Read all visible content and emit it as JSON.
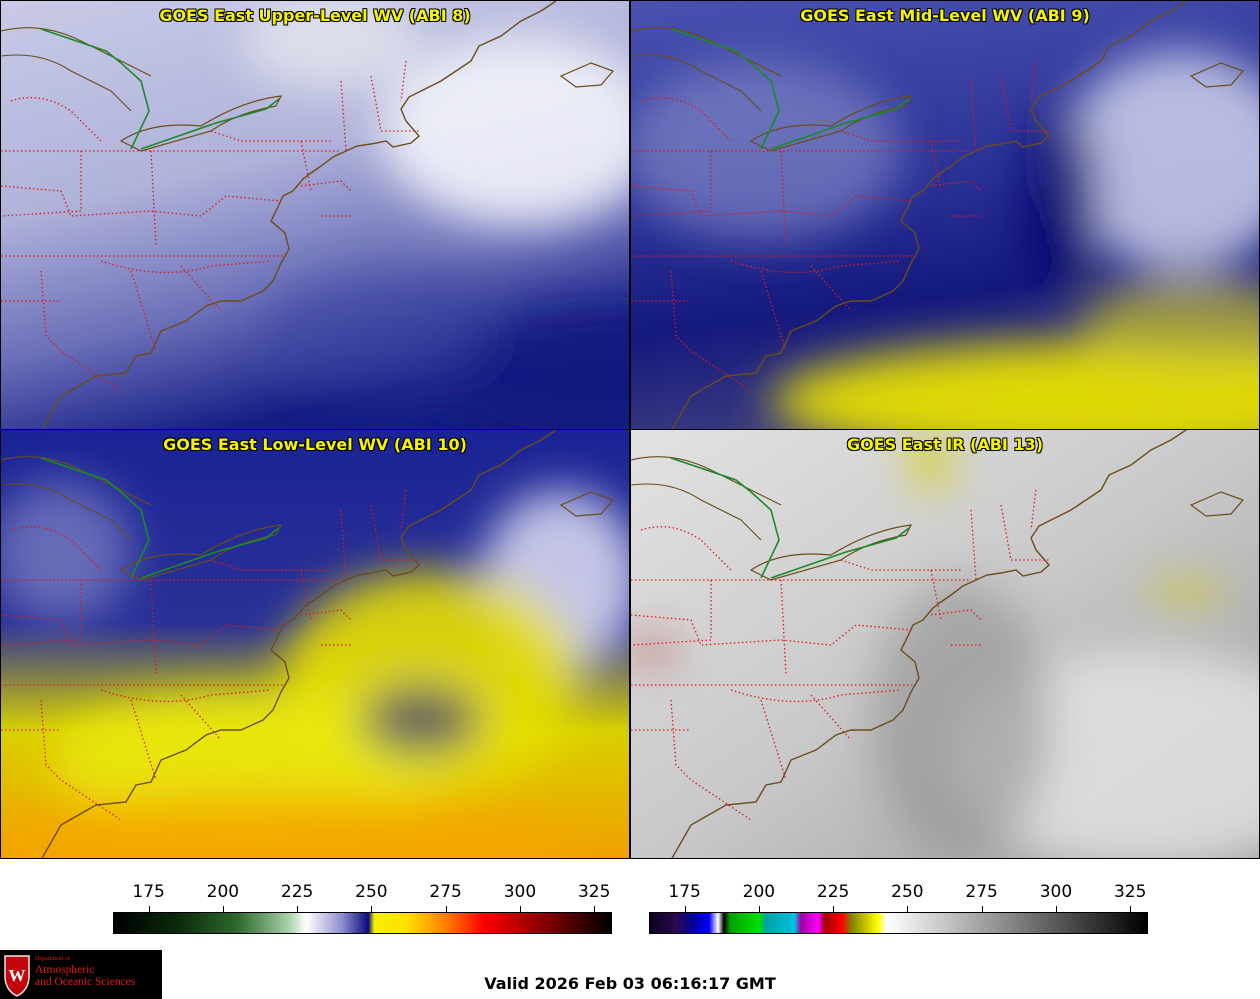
{
  "panels": [
    {
      "title": "GOES East Upper-Level WV (ABI 8)",
      "scheme": "upper"
    },
    {
      "title": "GOES East Mid-Level WV (ABI 9)",
      "scheme": "mid"
    },
    {
      "title": "GOES East Low-Level WV (ABI 10)",
      "scheme": "low"
    },
    {
      "title": "GOES East IR (ABI 13)",
      "scheme": "ir"
    }
  ],
  "colorbars": {
    "wv": {
      "ticks": [
        "175",
        "200",
        "225",
        "250",
        "275",
        "300",
        "325"
      ],
      "min": 163,
      "max": 331,
      "stops": [
        [
          163,
          "#000000"
        ],
        [
          185,
          "#0c2b0c"
        ],
        [
          205,
          "#2e6b2e"
        ],
        [
          222,
          "#a8cfa8"
        ],
        [
          228,
          "#ffffff"
        ],
        [
          240,
          "#8f8fd0"
        ],
        [
          249,
          "#0a0a7e"
        ],
        [
          251,
          "#f5f000"
        ],
        [
          262,
          "#ffe000"
        ],
        [
          275,
          "#ff8000"
        ],
        [
          288,
          "#ff0000"
        ],
        [
          305,
          "#990000"
        ],
        [
          331,
          "#000000"
        ]
      ]
    },
    "ir": {
      "ticks": [
        "175",
        "200",
        "225",
        "250",
        "275",
        "300",
        "325"
      ],
      "min": 163,
      "max": 331,
      "stops": [
        [
          163,
          "#0a0020"
        ],
        [
          172,
          "#2a0a50"
        ],
        [
          178,
          "#0000a0"
        ],
        [
          183,
          "#0000ff"
        ],
        [
          186,
          "#ffffff"
        ],
        [
          188,
          "#000000"
        ],
        [
          190,
          "#00a000"
        ],
        [
          200,
          "#00e000"
        ],
        [
          202,
          "#00a0a0"
        ],
        [
          212,
          "#00c0e0"
        ],
        [
          214,
          "#a000a0"
        ],
        [
          220,
          "#ff00ff"
        ],
        [
          222,
          "#a00000"
        ],
        [
          228,
          "#ff0000"
        ],
        [
          231,
          "#808000"
        ],
        [
          240,
          "#ffff00"
        ],
        [
          243,
          "#ffffff"
        ],
        [
          331,
          "#000000"
        ]
      ]
    }
  },
  "valid_time": "Valid 2026 Feb 03 06:16:17 GMT",
  "logo": {
    "line1": "Department of",
    "line2": "Atmospheric",
    "line3": "and Oceanic Sciences"
  }
}
